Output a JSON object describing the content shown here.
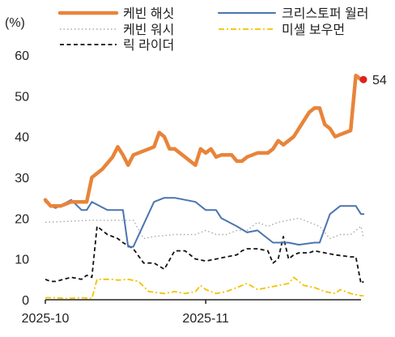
{
  "chart_data": {
    "type": "line",
    "y_unit": "(%)",
    "ylim": [
      0,
      60
    ],
    "y_ticks": [
      0,
      10,
      20,
      30,
      40,
      50,
      60
    ],
    "x_tick_labels": [
      "2025-10",
      "2025-11"
    ],
    "x_tick_positions": [
      1,
      32
    ],
    "xlim": [
      1,
      62
    ],
    "grid": false,
    "legend_position": "top",
    "series": [
      {
        "name": "케빈 해싯",
        "color": "#E8843A",
        "style": "solid-thick",
        "values": [
          [
            1,
            24.5
          ],
          [
            2,
            23
          ],
          [
            3,
            23
          ],
          [
            4,
            23
          ],
          [
            5,
            23.5
          ],
          [
            6,
            24
          ],
          [
            7,
            24
          ],
          [
            8,
            24
          ],
          [
            9,
            24
          ],
          [
            10,
            30
          ],
          [
            11,
            31
          ],
          [
            12,
            32
          ],
          [
            13,
            33.5
          ],
          [
            14,
            35
          ],
          [
            15,
            37.5
          ],
          [
            16,
            35.5
          ],
          [
            17,
            33
          ],
          [
            18,
            35.5
          ],
          [
            19,
            36
          ],
          [
            20,
            36.5
          ],
          [
            21,
            37
          ],
          [
            22,
            37.5
          ],
          [
            23,
            41
          ],
          [
            24,
            40
          ],
          [
            25,
            37
          ],
          [
            26,
            37
          ],
          [
            27,
            36
          ],
          [
            28,
            35
          ],
          [
            29,
            34
          ],
          [
            30,
            33
          ],
          [
            31,
            37
          ],
          [
            32,
            36
          ],
          [
            33,
            37
          ],
          [
            34,
            35
          ],
          [
            35,
            35.5
          ],
          [
            36,
            35.5
          ],
          [
            37,
            35.5
          ],
          [
            38,
            34
          ],
          [
            39,
            34
          ],
          [
            40,
            35
          ],
          [
            41,
            35.5
          ],
          [
            42,
            36
          ],
          [
            43,
            36
          ],
          [
            44,
            36
          ],
          [
            45,
            37
          ],
          [
            46,
            39
          ],
          [
            47,
            38
          ],
          [
            48,
            39
          ],
          [
            49,
            40
          ],
          [
            50,
            42
          ],
          [
            51,
            44
          ],
          [
            52,
            46
          ],
          [
            53,
            47
          ],
          [
            54,
            47
          ],
          [
            55,
            43
          ],
          [
            56,
            42
          ],
          [
            57,
            40
          ],
          [
            58,
            40.5
          ],
          [
            59,
            41
          ],
          [
            60,
            41.5
          ],
          [
            61,
            55
          ],
          [
            62,
            54
          ]
        ],
        "end_label": "54"
      },
      {
        "name": "크리스토퍼 월러",
        "color": "#4A74B0",
        "style": "solid",
        "values": [
          [
            1,
            24
          ],
          [
            2,
            23
          ],
          [
            3,
            22.5
          ],
          [
            6,
            24.5
          ],
          [
            8,
            22
          ],
          [
            9,
            22
          ],
          [
            10,
            24
          ],
          [
            13,
            22
          ],
          [
            16,
            22
          ],
          [
            17,
            13
          ],
          [
            18,
            13
          ],
          [
            22,
            24
          ],
          [
            24,
            25
          ],
          [
            26,
            25
          ],
          [
            28,
            24.5
          ],
          [
            30,
            24
          ],
          [
            32,
            22
          ],
          [
            34,
            22
          ],
          [
            35,
            20
          ],
          [
            38,
            18
          ],
          [
            40,
            16.5
          ],
          [
            42,
            17
          ],
          [
            43,
            16
          ],
          [
            45,
            14
          ],
          [
            48,
            14
          ],
          [
            50,
            13.5
          ],
          [
            53,
            14
          ],
          [
            54,
            14
          ],
          [
            56,
            21
          ],
          [
            58,
            23
          ],
          [
            61,
            23
          ],
          [
            62,
            21
          ],
          [
            63,
            21
          ]
        ]
      },
      {
        "name": "케빈 워시",
        "color": "#A8A8A8",
        "style": "dotted",
        "values": [
          [
            1,
            19
          ],
          [
            10,
            19.5
          ],
          [
            14,
            19.5
          ],
          [
            18,
            19.5
          ],
          [
            20,
            15
          ],
          [
            22,
            15.5
          ],
          [
            26,
            16
          ],
          [
            30,
            16
          ],
          [
            32,
            17
          ],
          [
            34,
            16
          ],
          [
            36,
            16
          ],
          [
            38,
            17
          ],
          [
            40,
            17
          ],
          [
            42,
            19
          ],
          [
            44,
            18
          ],
          [
            46,
            19
          ],
          [
            48,
            19.5
          ],
          [
            50,
            20
          ],
          [
            52,
            19
          ],
          [
            54,
            18
          ],
          [
            56,
            15
          ],
          [
            58,
            16
          ],
          [
            60,
            16
          ],
          [
            62,
            18
          ],
          [
            63,
            15
          ]
        ]
      },
      {
        "name": "릭 라이더",
        "color": "#111111",
        "style": "dashed",
        "values": [
          [
            1,
            5
          ],
          [
            2,
            4.5
          ],
          [
            3,
            4.5
          ],
          [
            6,
            5.5
          ],
          [
            8,
            5
          ],
          [
            9,
            6
          ],
          [
            10,
            5.5
          ],
          [
            11,
            18
          ],
          [
            13,
            16
          ],
          [
            15,
            15
          ],
          [
            16,
            14
          ],
          [
            18,
            12.5
          ],
          [
            20,
            9
          ],
          [
            22,
            9
          ],
          [
            24,
            7.5
          ],
          [
            26,
            12
          ],
          [
            28,
            12
          ],
          [
            30,
            10
          ],
          [
            32,
            9.5
          ],
          [
            34,
            10
          ],
          [
            36,
            10.5
          ],
          [
            38,
            11
          ],
          [
            39,
            12
          ],
          [
            40,
            12.5
          ],
          [
            42,
            12.5
          ],
          [
            44,
            12
          ],
          [
            45,
            9
          ],
          [
            46,
            10
          ],
          [
            47,
            15.5
          ],
          [
            48,
            10
          ],
          [
            49,
            11
          ],
          [
            50,
            11.5
          ],
          [
            52,
            11.5
          ],
          [
            53,
            12
          ],
          [
            55,
            11.5
          ],
          [
            57,
            11
          ],
          [
            60,
            10.5
          ],
          [
            61,
            10.5
          ],
          [
            62,
            4
          ],
          [
            63,
            4.5
          ]
        ]
      },
      {
        "name": "미셸 보우먼",
        "color": "#F2C200",
        "style": "dashdot",
        "values": [
          [
            1,
            0.5
          ],
          [
            3,
            0.5
          ],
          [
            5,
            0.3
          ],
          [
            8,
            0.5
          ],
          [
            10,
            0.3
          ],
          [
            11,
            5
          ],
          [
            14,
            5
          ],
          [
            15,
            4.8
          ],
          [
            17,
            5
          ],
          [
            19,
            4.5
          ],
          [
            21,
            2
          ],
          [
            24,
            1.5
          ],
          [
            26,
            2
          ],
          [
            28,
            1.5
          ],
          [
            30,
            2
          ],
          [
            31,
            3.5
          ],
          [
            32,
            2.5
          ],
          [
            34,
            1.5
          ],
          [
            36,
            2
          ],
          [
            38,
            3
          ],
          [
            40,
            4
          ],
          [
            42,
            2.5
          ],
          [
            44,
            3
          ],
          [
            46,
            3.5
          ],
          [
            48,
            4
          ],
          [
            49,
            5.5
          ],
          [
            51,
            3.5
          ],
          [
            53,
            3
          ],
          [
            55,
            2
          ],
          [
            57,
            1.5
          ],
          [
            58,
            2.5
          ],
          [
            60,
            1.5
          ],
          [
            62,
            1
          ],
          [
            63,
            1
          ]
        ]
      }
    ]
  },
  "legend": [
    {
      "label": "케빈 해싯",
      "series": 0
    },
    {
      "label": "크리스토퍼 월러",
      "series": 1
    },
    {
      "label": "케빈 워시",
      "series": 2
    },
    {
      "label": "미셸 보우먼",
      "series": 4
    },
    {
      "label": "릭 라이더",
      "series": 3
    }
  ]
}
